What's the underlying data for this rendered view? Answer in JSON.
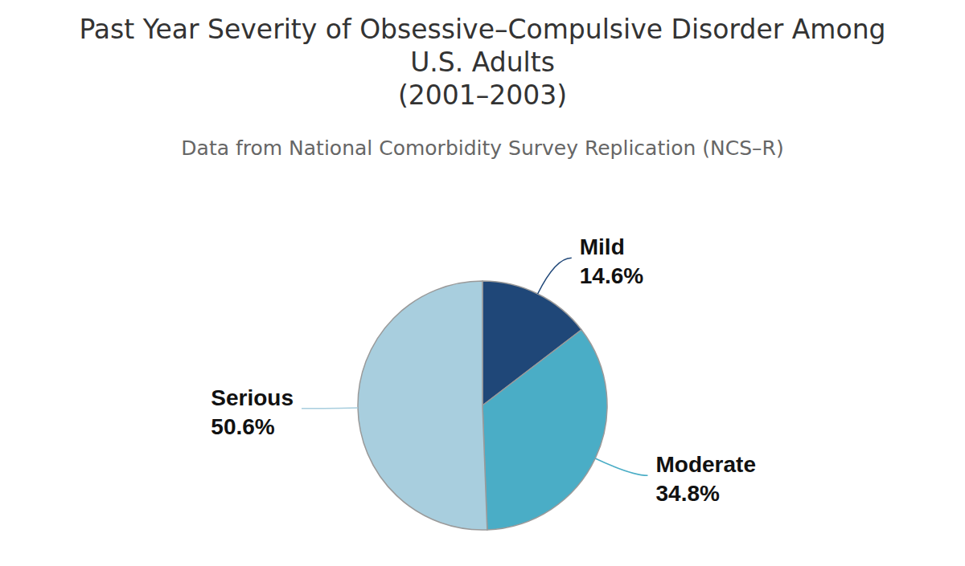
{
  "chart_data": {
    "type": "pie",
    "title": "Past Year Severity of Obsessive–Compulsive Disorder Among U.S. Adults (2001–2003)",
    "subtitle": "Data from National Comorbidity Survey Replication (NCS–R)",
    "categories": [
      "Mild",
      "Moderate",
      "Serious"
    ],
    "values": [
      14.6,
      34.8,
      50.6
    ],
    "value_labels": [
      "14.6%",
      "34.8%",
      "50.6%"
    ],
    "colors": [
      "#1f4778",
      "#4aadc6",
      "#a8cede"
    ],
    "data_labels": true
  }
}
